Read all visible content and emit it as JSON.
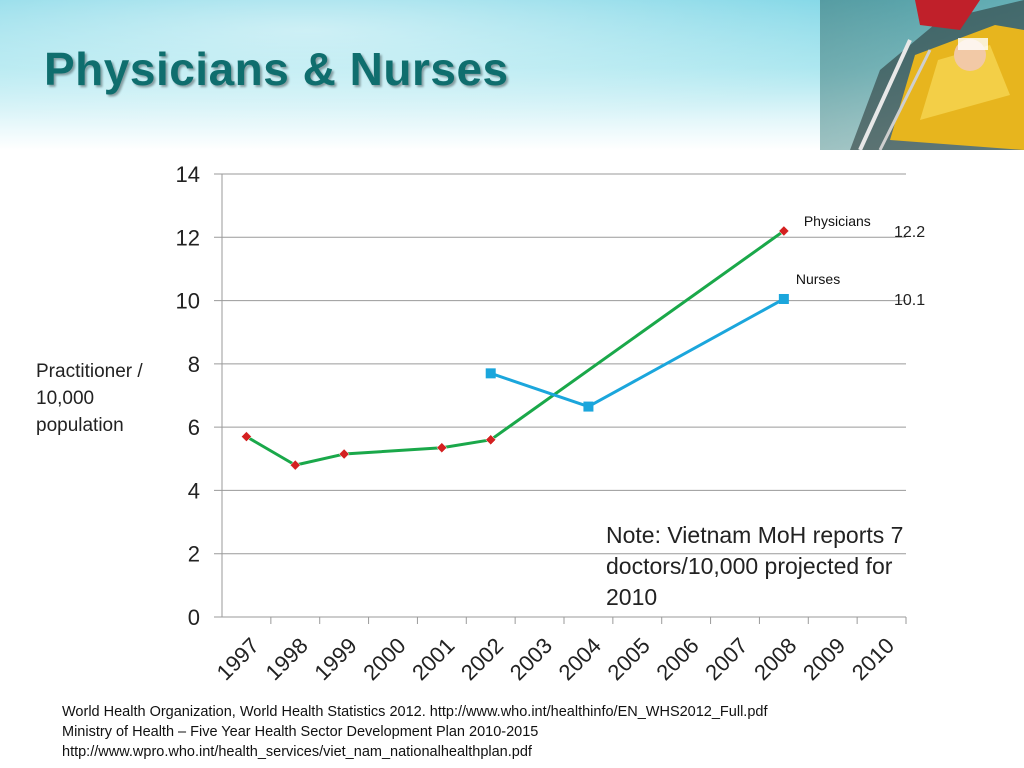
{
  "slide": {
    "title": "Physicians & Nurses",
    "y_axis_label": "Practitioner / 10,000 population",
    "note": "Note: Vietnam MoH reports 7 doctors/10,000  projected for 2010",
    "sources": [
      "World Health Organization, World Health Statistics 2012.  http://www.who.int/healthinfo/EN_WHS2012_Full.pdf",
      "Ministry of Health – Five Year Health Sector Development Plan 2010-2015",
      "http://www.wpro.who.int/health_services/viet_nam_nationalhealthplan.pdf"
    ],
    "colors": {
      "title": "#0f6e6e",
      "physicians": "#1aa84a",
      "nurses": "#1ba6dc",
      "physician_marker": "#d42020",
      "grid": "#9a9a9a"
    }
  },
  "chart_data": {
    "type": "line",
    "categories": [
      "1997",
      "1998",
      "1999",
      "2000",
      "2001",
      "2002",
      "2003",
      "2004",
      "2005",
      "2006",
      "2007",
      "2008",
      "2009",
      "2010"
    ],
    "ylim": [
      0,
      14
    ],
    "yticks": [
      0,
      2,
      4,
      6,
      8,
      10,
      12,
      14
    ],
    "grid": true,
    "legend": "inline labels at line ends",
    "series": [
      {
        "name": "Physicians",
        "color": "#1aa84a",
        "marker": "diamond",
        "x": [
          "1997",
          "1998",
          "1999",
          "2001",
          "2002",
          "2008"
        ],
        "values": [
          5.7,
          4.8,
          5.15,
          5.35,
          5.6,
          12.2
        ],
        "end_label": "12.2"
      },
      {
        "name": "Nurses",
        "color": "#1ba6dc",
        "marker": "square",
        "x": [
          "2002",
          "2004",
          "2008"
        ],
        "values": [
          7.7,
          6.65,
          10.05
        ],
        "end_label": "10.1"
      }
    ]
  }
}
